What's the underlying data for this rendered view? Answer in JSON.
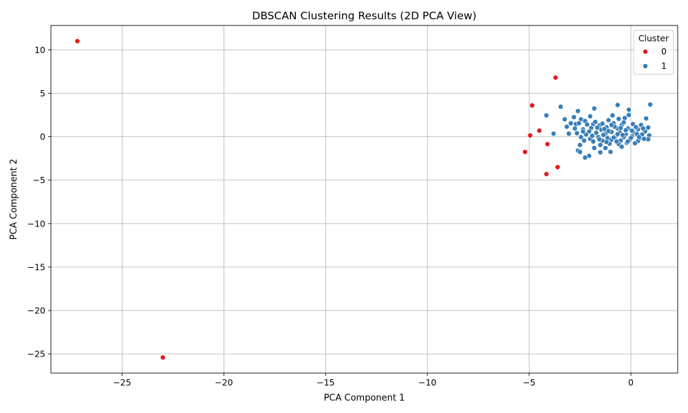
{
  "chart_data": {
    "type": "scatter",
    "title": "DBSCAN Clustering Results (2D PCA View)",
    "xlabel": "PCA Component 1",
    "ylabel": "PCA Component 2",
    "xlim": [
      -28.5,
      2.3
    ],
    "ylim": [
      -27.2,
      12.8
    ],
    "xticks": [
      -25,
      -20,
      -15,
      -10,
      -5,
      0
    ],
    "yticks": [
      -25,
      -20,
      -15,
      -10,
      -5,
      0,
      5,
      10
    ],
    "xtick_labels": [
      "−25",
      "−20",
      "−15",
      "−10",
      "−5",
      "0"
    ],
    "ytick_labels": [
      "−25",
      "−20",
      "−15",
      "−10",
      "−5",
      "0",
      "5",
      "10"
    ],
    "grid": true,
    "legend": {
      "title": "Cluster",
      "placement": "top-right",
      "entries": [
        {
          "label": "0",
          "color": "#e41a1c"
        },
        {
          "label": "1",
          "color": "#377eb8"
        }
      ]
    },
    "series": [
      {
        "name": "0",
        "color": "#e41a1c",
        "points": [
          [
            -27.2,
            11.0
          ],
          [
            -23.0,
            -25.4
          ],
          [
            -3.7,
            6.8
          ],
          [
            -4.85,
            3.6
          ],
          [
            -4.5,
            0.7
          ],
          [
            -4.95,
            0.15
          ],
          [
            -5.2,
            -1.75
          ],
          [
            -4.1,
            -0.85
          ],
          [
            -3.6,
            -3.5
          ],
          [
            -4.15,
            -4.3
          ]
        ]
      },
      {
        "name": "1",
        "color": "#377eb8",
        "points": [
          [
            0.95,
            3.7
          ],
          [
            -0.65,
            3.65
          ],
          [
            -3.45,
            3.45
          ],
          [
            -1.8,
            3.25
          ],
          [
            -0.1,
            3.1
          ],
          [
            -2.6,
            2.95
          ],
          [
            -4.15,
            2.45
          ],
          [
            -0.9,
            2.45
          ],
          [
            -2.0,
            2.35
          ],
          [
            -2.8,
            2.25
          ],
          [
            0.75,
            2.1
          ],
          [
            -2.45,
            2.0
          ],
          [
            -3.25,
            2.0
          ],
          [
            -0.3,
            2.15
          ],
          [
            -1.1,
            1.9
          ],
          [
            -2.25,
            1.8
          ],
          [
            -2.95,
            1.55
          ],
          [
            -2.7,
            1.45
          ],
          [
            -3.15,
            1.15
          ],
          [
            -2.55,
            1.55
          ],
          [
            -1.85,
            1.45
          ],
          [
            -1.55,
            1.3
          ],
          [
            -0.85,
            1.55
          ],
          [
            -0.45,
            1.35
          ],
          [
            0.1,
            1.45
          ],
          [
            0.5,
            1.35
          ],
          [
            0.85,
            1.05
          ],
          [
            -1.2,
            1.1
          ],
          [
            -1.95,
            1.0
          ],
          [
            -2.35,
            0.85
          ],
          [
            -2.05,
            0.6
          ],
          [
            -1.45,
            0.8
          ],
          [
            -0.65,
            0.95
          ],
          [
            -0.15,
            0.95
          ],
          [
            0.35,
            0.85
          ],
          [
            0.7,
            0.6
          ],
          [
            -3.8,
            0.35
          ],
          [
            -3.05,
            0.35
          ],
          [
            -2.65,
            0.4
          ],
          [
            -2.2,
            0.25
          ],
          [
            -1.7,
            0.45
          ],
          [
            -1.25,
            0.35
          ],
          [
            -0.95,
            0.55
          ],
          [
            -0.55,
            0.5
          ],
          [
            -0.25,
            0.3
          ],
          [
            0.15,
            0.45
          ],
          [
            0.55,
            0.25
          ],
          [
            0.9,
            0.15
          ],
          [
            -2.45,
            -0.05
          ],
          [
            -2.0,
            -0.25
          ],
          [
            -1.6,
            -0.05
          ],
          [
            -1.15,
            -0.15
          ],
          [
            -0.75,
            0.05
          ],
          [
            -0.35,
            -0.05
          ],
          [
            0.05,
            0.05
          ],
          [
            0.45,
            -0.15
          ],
          [
            0.85,
            -0.3
          ],
          [
            -2.3,
            -0.45
          ],
          [
            -1.85,
            -0.55
          ],
          [
            -1.4,
            -0.45
          ],
          [
            -0.95,
            -0.35
          ],
          [
            -0.5,
            -0.45
          ],
          [
            -0.05,
            -0.35
          ],
          [
            0.35,
            -0.5
          ],
          [
            0.65,
            -0.25
          ],
          [
            -2.5,
            -0.95
          ],
          [
            -1.5,
            -0.95
          ],
          [
            -1.05,
            -0.8
          ],
          [
            -0.6,
            -0.85
          ],
          [
            -0.2,
            -0.7
          ],
          [
            0.2,
            -0.75
          ],
          [
            -2.6,
            -1.6
          ],
          [
            -1.8,
            -1.3
          ],
          [
            -1.25,
            -1.3
          ],
          [
            -0.45,
            -1.15
          ],
          [
            -2.5,
            -1.75
          ],
          [
            -1.5,
            -1.8
          ],
          [
            -1.0,
            -1.75
          ],
          [
            -2.05,
            -2.2
          ],
          [
            -2.25,
            -2.4
          ],
          [
            -1.3,
            0.9
          ],
          [
            -0.8,
            1.15
          ],
          [
            -0.35,
            1.65
          ],
          [
            0.25,
            1.1
          ],
          [
            -1.65,
            1.05
          ],
          [
            -2.15,
            1.4
          ],
          [
            -0.1,
            2.5
          ],
          [
            -0.6,
            2.05
          ],
          [
            -1.35,
            0.2
          ],
          [
            -0.85,
            -0.1
          ],
          [
            -0.4,
            0.2
          ],
          [
            0.0,
            -0.15
          ],
          [
            0.3,
            0.3
          ],
          [
            -1.55,
            -0.3
          ],
          [
            -1.9,
            0.1
          ],
          [
            -2.35,
            0.6
          ],
          [
            -0.7,
            -0.55
          ],
          [
            -0.25,
            0.75
          ],
          [
            0.6,
            0.95
          ],
          [
            -1.1,
            0.65
          ],
          [
            -1.75,
            1.7
          ],
          [
            -0.5,
            1.0
          ],
          [
            0.05,
            0.7
          ],
          [
            -0.95,
            1.35
          ],
          [
            -1.4,
            1.5
          ],
          [
            -2.75,
            0.95
          ],
          [
            -0.15,
            -0.55
          ],
          [
            0.4,
            -0.05
          ],
          [
            -1.2,
            -0.6
          ],
          [
            -0.65,
            0.3
          ]
        ]
      }
    ]
  }
}
